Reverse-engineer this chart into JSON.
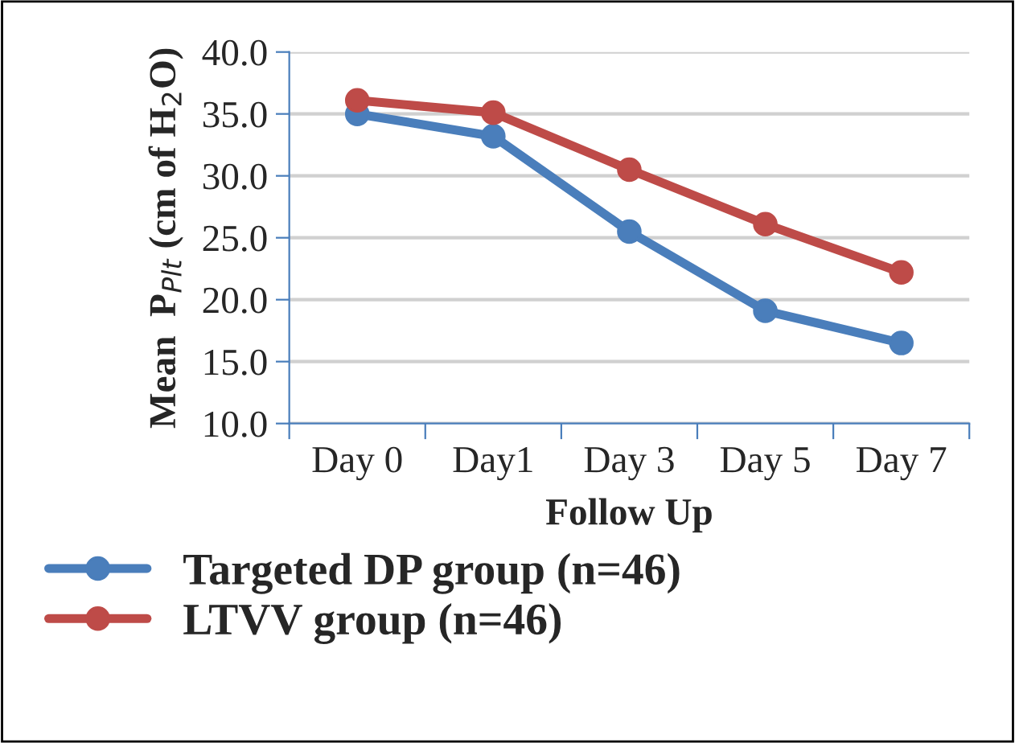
{
  "chart_data": {
    "type": "line",
    "xlabel": "Follow Up",
    "ylabel": "Mean  P$_{Plt}$ (cm of H$_{2}$O)",
    "categories": [
      "Day 0",
      "Day1",
      "Day 3",
      "Day 5",
      "Day 7"
    ],
    "series": [
      {
        "name": "Targeted DP group (n=46)",
        "color": "#4a7ebb",
        "values": [
          35.0,
          33.2,
          25.5,
          19.1,
          16.5
        ]
      },
      {
        "name": "LTVV group (n=46)",
        "color": "#be4b48",
        "values": [
          36.1,
          35.1,
          30.5,
          26.1,
          22.2
        ]
      }
    ],
    "ylim": [
      10,
      40
    ],
    "yticks": [
      {
        "value": 10,
        "label": "10.0"
      },
      {
        "value": 15,
        "label": "15.0"
      },
      {
        "value": 20,
        "label": "20.0"
      },
      {
        "value": 25,
        "label": "25.0"
      },
      {
        "value": 30,
        "label": "30.0"
      },
      {
        "value": 35,
        "label": "35.0"
      },
      {
        "value": 40,
        "label": "40.0"
      }
    ],
    "grid": "y",
    "legend": "bottom",
    "marker": "circle",
    "line_style": "solid"
  }
}
